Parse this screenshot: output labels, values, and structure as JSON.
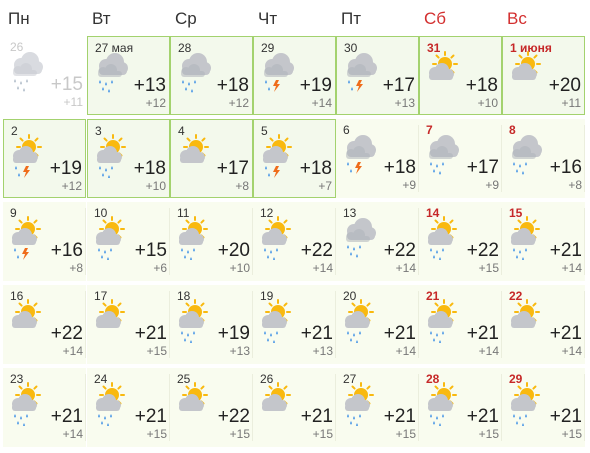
{
  "weekdays": [
    {
      "label": "Пн",
      "weekend": false
    },
    {
      "label": "Вт",
      "weekend": false
    },
    {
      "label": "Ср",
      "weekend": false
    },
    {
      "label": "Чт",
      "weekend": false
    },
    {
      "label": "Пт",
      "weekend": false
    },
    {
      "label": "Сб",
      "weekend": true
    },
    {
      "label": "Вс",
      "weekend": true
    }
  ],
  "colors": {
    "weekend_text": "#c62828",
    "current_border": "#a3d26e",
    "current_bg": "#f3f9ec",
    "future_bg": "#f9fcef",
    "past_text": "#c8c8c8",
    "sun": "#f9b90f",
    "cloud": "#c4c6cb",
    "rain": "#3a8ee6",
    "lightning": "#ef6c1a"
  },
  "days": [
    {
      "date": "26",
      "hi": "+15",
      "lo": "+11",
      "icon": "cloud-rain-icon",
      "state": "past",
      "weekend": false
    },
    {
      "date": "27 мая",
      "hi": "+13",
      "lo": "+12",
      "icon": "cloud-rain-icon",
      "state": "current",
      "weekend": false
    },
    {
      "date": "28",
      "hi": "+18",
      "lo": "+12",
      "icon": "cloud-rain-icon",
      "state": "current",
      "weekend": false
    },
    {
      "date": "29",
      "hi": "+19",
      "lo": "+14",
      "icon": "cloud-thunder-icon",
      "state": "current",
      "weekend": false
    },
    {
      "date": "30",
      "hi": "+17",
      "lo": "+13",
      "icon": "cloud-thunder-icon",
      "state": "current",
      "weekend": false
    },
    {
      "date": "31",
      "hi": "+18",
      "lo": "+10",
      "icon": "sun-cloud-icon",
      "state": "current",
      "weekend": true
    },
    {
      "date": "1 июня",
      "hi": "+20",
      "lo": "+11",
      "icon": "sun-cloud-icon",
      "state": "current",
      "weekend": true
    },
    {
      "date": "2",
      "hi": "+19",
      "lo": "+12",
      "icon": "sun-cloud-thunder-icon",
      "state": "current",
      "weekend": false
    },
    {
      "date": "3",
      "hi": "+18",
      "lo": "+10",
      "icon": "sun-cloud-rain-icon",
      "state": "current",
      "weekend": false
    },
    {
      "date": "4",
      "hi": "+17",
      "lo": "+8",
      "icon": "sun-cloud-icon",
      "state": "current",
      "weekend": false
    },
    {
      "date": "5",
      "hi": "+18",
      "lo": "+7",
      "icon": "sun-cloud-thunder-icon",
      "state": "current",
      "weekend": false
    },
    {
      "date": "6",
      "hi": "+18",
      "lo": "+9",
      "icon": "cloud-thunder-icon",
      "state": "future",
      "weekend": false
    },
    {
      "date": "7",
      "hi": "+17",
      "lo": "+9",
      "icon": "cloud-rain-icon",
      "state": "future",
      "weekend": true
    },
    {
      "date": "8",
      "hi": "+16",
      "lo": "+8",
      "icon": "cloud-rain-icon",
      "state": "future",
      "weekend": true
    },
    {
      "date": "9",
      "hi": "+16",
      "lo": "+8",
      "icon": "sun-cloud-thunder-icon",
      "state": "future",
      "weekend": false
    },
    {
      "date": "10",
      "hi": "+15",
      "lo": "+6",
      "icon": "sun-cloud-rain-icon",
      "state": "future",
      "weekend": false
    },
    {
      "date": "11",
      "hi": "+20",
      "lo": "+10",
      "icon": "sun-cloud-rain-icon",
      "state": "future",
      "weekend": false
    },
    {
      "date": "12",
      "hi": "+22",
      "lo": "+14",
      "icon": "sun-cloud-rain-icon",
      "state": "future",
      "weekend": false
    },
    {
      "date": "13",
      "hi": "+22",
      "lo": "+14",
      "icon": "cloud-rain-icon",
      "state": "future",
      "weekend": false
    },
    {
      "date": "14",
      "hi": "+22",
      "lo": "+15",
      "icon": "sun-cloud-rain-icon",
      "state": "future",
      "weekend": true
    },
    {
      "date": "15",
      "hi": "+21",
      "lo": "+14",
      "icon": "sun-cloud-rain-icon",
      "state": "future",
      "weekend": true
    },
    {
      "date": "16",
      "hi": "+22",
      "lo": "+14",
      "icon": "sun-cloud-icon",
      "state": "future",
      "weekend": false
    },
    {
      "date": "17",
      "hi": "+21",
      "lo": "+15",
      "icon": "sun-cloud-icon",
      "state": "future",
      "weekend": false
    },
    {
      "date": "18",
      "hi": "+19",
      "lo": "+13",
      "icon": "sun-cloud-rain-icon",
      "state": "future",
      "weekend": false
    },
    {
      "date": "19",
      "hi": "+21",
      "lo": "+13",
      "icon": "sun-cloud-rain-icon",
      "state": "future",
      "weekend": false
    },
    {
      "date": "20",
      "hi": "+21",
      "lo": "+14",
      "icon": "sun-cloud-rain-icon",
      "state": "future",
      "weekend": false
    },
    {
      "date": "21",
      "hi": "+21",
      "lo": "+14",
      "icon": "sun-cloud-rain-icon",
      "state": "future",
      "weekend": true
    },
    {
      "date": "22",
      "hi": "+21",
      "lo": "+14",
      "icon": "sun-cloud-icon",
      "state": "future",
      "weekend": true
    },
    {
      "date": "23",
      "hi": "+21",
      "lo": "+14",
      "icon": "sun-cloud-rain-icon",
      "state": "future",
      "weekend": false
    },
    {
      "date": "24",
      "hi": "+21",
      "lo": "+15",
      "icon": "sun-cloud-rain-icon",
      "state": "future",
      "weekend": false
    },
    {
      "date": "25",
      "hi": "+22",
      "lo": "+15",
      "icon": "sun-cloud-icon",
      "state": "future",
      "weekend": false
    },
    {
      "date": "26",
      "hi": "+21",
      "lo": "+15",
      "icon": "sun-cloud-icon",
      "state": "future",
      "weekend": false
    },
    {
      "date": "27",
      "hi": "+21",
      "lo": "+15",
      "icon": "sun-cloud-rain-icon",
      "state": "future",
      "weekend": false
    },
    {
      "date": "28",
      "hi": "+21",
      "lo": "+15",
      "icon": "sun-cloud-rain-icon",
      "state": "future",
      "weekend": true
    },
    {
      "date": "29",
      "hi": "+21",
      "lo": "+15",
      "icon": "sun-cloud-rain-icon",
      "state": "future",
      "weekend": true
    }
  ]
}
